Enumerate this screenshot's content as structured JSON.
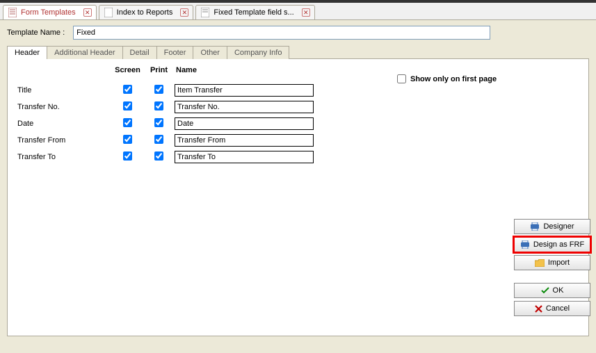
{
  "docTabs": [
    {
      "label": "Form Templates",
      "active": true,
      "icon": "form"
    },
    {
      "label": "Index to Reports",
      "active": false,
      "icon": "page"
    },
    {
      "label": "Fixed Template field s...",
      "active": false,
      "icon": "page"
    }
  ],
  "templateNameLabel": "Template Name :",
  "templateName": "Fixed",
  "subTabs": [
    "Header",
    "Additional Header",
    "Detail",
    "Footer",
    "Other",
    "Company Info"
  ],
  "activeSubTab": 0,
  "columns": {
    "screen": "Screen",
    "print": "Print",
    "name": "Name"
  },
  "showOnly": "Show only on first page",
  "rows": [
    {
      "label": "Title",
      "screen": true,
      "print": true,
      "name": "Item Transfer"
    },
    {
      "label": "Transfer No.",
      "screen": true,
      "print": true,
      "name": "Transfer No."
    },
    {
      "label": "Date",
      "screen": true,
      "print": true,
      "name": "Date"
    },
    {
      "label": "Transfer From",
      "screen": true,
      "print": true,
      "name": "Transfer From"
    },
    {
      "label": "Transfer To",
      "screen": true,
      "print": true,
      "name": "Transfer To"
    }
  ],
  "buttons": {
    "designer": "Designer",
    "designFrf": "Design as FRF",
    "import": "Import",
    "ok": "OK",
    "cancel": "Cancel"
  }
}
